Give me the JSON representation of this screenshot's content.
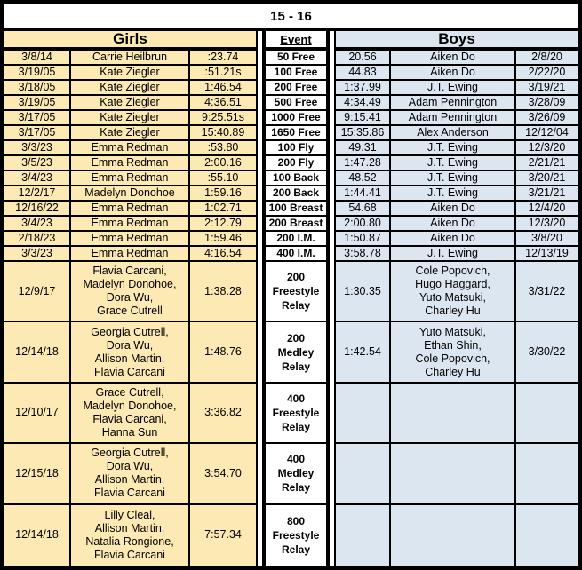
{
  "title": "15 - 16",
  "headers": {
    "girls": "Girls",
    "event": "Event",
    "boys": "Boys"
  },
  "colors": {
    "girls_bg": "#FDE9B3",
    "boys_bg": "#DCE6F1",
    "border": "#000000",
    "background": "#FFFFFF"
  },
  "rows": [
    {
      "girls": {
        "date": "3/8/14",
        "name": "Carrie Heilbrun",
        "time": ":23.74"
      },
      "event": "50 Free",
      "boys": {
        "time": "20.56",
        "name": "Aiken Do",
        "date": "2/8/20"
      }
    },
    {
      "girls": {
        "date": "3/19/05",
        "name": "Kate Ziegler",
        "time": ":51.21s"
      },
      "event": "100 Free",
      "boys": {
        "time": "44.83",
        "name": "Aiken Do",
        "date": "2/22/20"
      }
    },
    {
      "girls": {
        "date": "3/18/05",
        "name": "Kate Ziegler",
        "time": "1:46.54"
      },
      "event": "200 Free",
      "boys": {
        "time": "1:37.99",
        "name": "J.T. Ewing",
        "date": "3/19/21"
      }
    },
    {
      "girls": {
        "date": "3/19/05",
        "name": "Kate Ziegler",
        "time": "4:36.51"
      },
      "event": "500 Free",
      "boys": {
        "time": "4:34.49",
        "name": "Adam Pennington",
        "date": "3/28/09"
      }
    },
    {
      "girls": {
        "date": "3/17/05",
        "name": "Kate Ziegler",
        "time": "9:25.51s"
      },
      "event": "1000 Free",
      "boys": {
        "time": "9:15.41",
        "name": "Adam Pennington",
        "date": "3/26/09"
      }
    },
    {
      "girls": {
        "date": "3/17/05",
        "name": "Kate Ziegler",
        "time": "15:40.89"
      },
      "event": "1650 Free",
      "boys": {
        "time": "15:35.86",
        "name": "Alex Anderson",
        "date": "12/12/04"
      }
    },
    {
      "girls": {
        "date": "3/3/23",
        "name": "Emma Redman",
        "time": ":53.80"
      },
      "event": "100 Fly",
      "boys": {
        "time": "49.31",
        "name": "J.T. Ewing",
        "date": "12/3/20"
      }
    },
    {
      "girls": {
        "date": "3/5/23",
        "name": "Emma Redman",
        "time": "2:00.16"
      },
      "event": "200 Fly",
      "boys": {
        "time": "1:47.28",
        "name": "J.T. Ewing",
        "date": "2/21/21"
      }
    },
    {
      "girls": {
        "date": "3/4/23",
        "name": "Emma Redman",
        "time": ":55.10"
      },
      "event": "100 Back",
      "boys": {
        "time": "48.52",
        "name": "J.T. Ewing",
        "date": "3/20/21"
      }
    },
    {
      "girls": {
        "date": "12/2/17",
        "name": "Madelyn Donohoe",
        "time": "1:59.16"
      },
      "event": "200 Back",
      "boys": {
        "time": "1:44.41",
        "name": "J.T. Ewing",
        "date": "3/21/21"
      }
    },
    {
      "girls": {
        "date": "12/16/22",
        "name": "Emma Redman",
        "time": "1:02.71"
      },
      "event": "100 Breast",
      "boys": {
        "time": "54.68",
        "name": "Aiken Do",
        "date": "12/4/20"
      }
    },
    {
      "girls": {
        "date": "3/4/23",
        "name": "Emma Redman",
        "time": "2:12.79"
      },
      "event": "200 Breast",
      "boys": {
        "time": "2:00.80",
        "name": "Aiken Do",
        "date": "12/3/20"
      }
    },
    {
      "girls": {
        "date": "2/18/23",
        "name": "Emma Redman",
        "time": "1:59.46"
      },
      "event": "200 I.M.",
      "boys": {
        "time": "1:50.87",
        "name": "Aiken Do",
        "date": "3/8/20"
      }
    },
    {
      "girls": {
        "date": "3/3/23",
        "name": "Emma Redman",
        "time": "4:16.54"
      },
      "event": "400 I.M.",
      "boys": {
        "time": "3:58.78",
        "name": "J.T. Ewing",
        "date": "12/13/19"
      }
    }
  ],
  "relay_rows": [
    {
      "girls": {
        "date": "12/9/17",
        "names": [
          "Flavia Carcani,",
          "Madelyn Donohoe,",
          "Dora Wu,",
          "Grace Cutrell"
        ],
        "time": "1:38.28"
      },
      "event": [
        "200",
        "Freestyle",
        "Relay"
      ],
      "boys": {
        "time": "1:30.35",
        "names": [
          "Cole Popovich,",
          "Hugo Haggard,",
          "Yuto Matsuki,",
          "Charley Hu"
        ],
        "date": "3/31/22"
      }
    },
    {
      "girls": {
        "date": "12/14/18",
        "names": [
          "Georgia Cutrell,",
          "Dora Wu,",
          "Allison Martin,",
          "Flavia Carcani"
        ],
        "time": "1:48.76"
      },
      "event": [
        "200",
        "Medley",
        "Relay"
      ],
      "boys": {
        "time": "1:42.54",
        "names": [
          "Yuto Matsuki,",
          "Ethan Shin,",
          "Cole Popovich,",
          "Charley Hu"
        ],
        "date": "3/30/22"
      }
    },
    {
      "girls": {
        "date": "12/10/17",
        "names": [
          "Grace Cutrell,",
          "Madelyn Donohoe,",
          "Flavia Carcani,",
          "Hanna Sun"
        ],
        "time": "3:36.82"
      },
      "event": [
        "400",
        "Freestyle",
        "Relay"
      ],
      "boys": {
        "time": "",
        "names": [],
        "date": ""
      }
    },
    {
      "girls": {
        "date": "12/15/18",
        "names": [
          "Georgia Cutrell,",
          "Dora Wu,",
          "Allison Martin,",
          "Flavia Carcani"
        ],
        "time": "3:54.70"
      },
      "event": [
        "400",
        "Medley",
        "Relay"
      ],
      "boys": {
        "time": "",
        "names": [],
        "date": ""
      }
    },
    {
      "girls": {
        "date": "12/14/18",
        "names": [
          "Lilly Cleal,",
          "Allison Martin,",
          "Natalia Rongione,",
          "Flavia Carcani"
        ],
        "time": "7:57.34"
      },
      "event": [
        "800",
        "Freestyle",
        "Relay"
      ],
      "boys": {
        "time": "",
        "names": [],
        "date": ""
      }
    }
  ]
}
